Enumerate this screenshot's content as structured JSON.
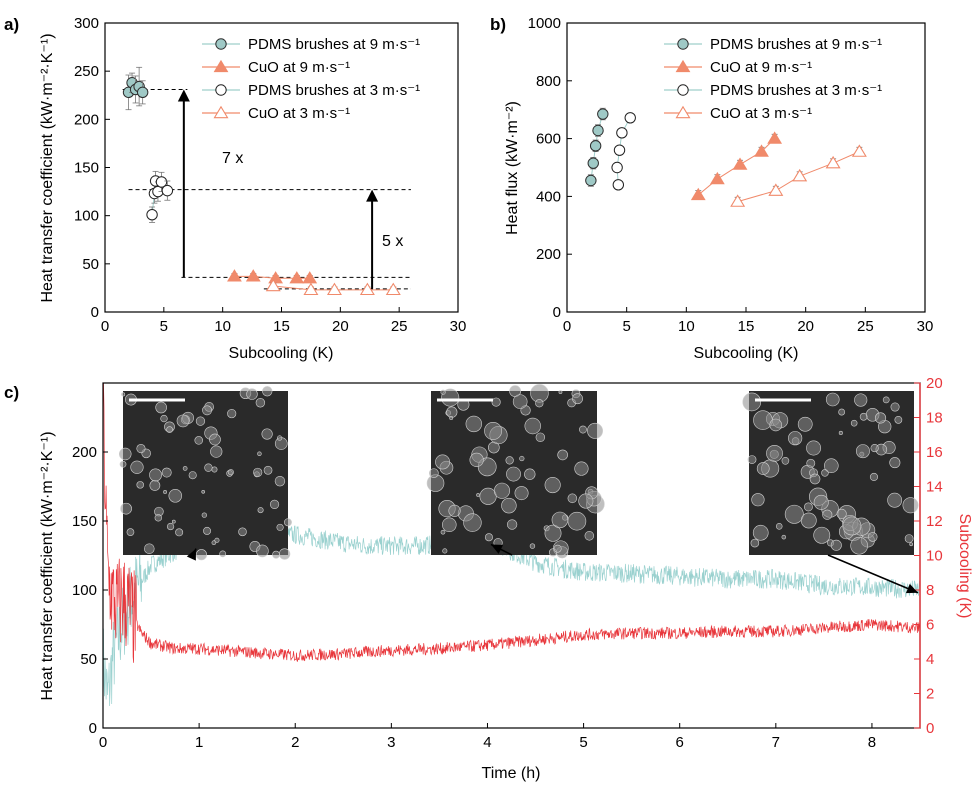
{
  "colors": {
    "teal_fill": "#9fc9c6",
    "teal_line": "#9fcfcb",
    "teal_edge": "#2f2f2f",
    "salmon": "#f08a6b",
    "salmon_line": "#f08a6b",
    "red": "#e8363b",
    "cyan_trace": "#9ad1cf"
  },
  "panels": {
    "a": "a)",
    "b": "b)",
    "c": "c)"
  },
  "chart_data": [
    {
      "type": "scatter",
      "panel": "a",
      "xlabel": "Subcooling (K)",
      "ylabel": "Heat transfer coefficient (kW·m⁻²·K⁻¹)",
      "xlim": [
        0,
        30
      ],
      "ylim": [
        0,
        300
      ],
      "xticks": [
        0,
        5,
        10,
        15,
        20,
        25,
        30
      ],
      "yticks": [
        0,
        50,
        100,
        150,
        200,
        250,
        300
      ],
      "legend_position": "top-right",
      "series": [
        {
          "name": "PDMS brushes at 9 m·s⁻¹",
          "marker": "circle-filled",
          "x": [
            2.0,
            2.3,
            2.6,
            2.9,
            3.2
          ],
          "y": [
            228,
            238,
            231,
            234,
            228
          ],
          "err": [
            18,
            10,
            14,
            20,
            12
          ]
        },
        {
          "name": "CuO at 9 m·s⁻¹",
          "marker": "triangle-filled",
          "x": [
            11.0,
            12.6,
            14.5,
            16.3,
            17.4
          ],
          "y": [
            37,
            37,
            35,
            35,
            35
          ],
          "err": [
            3,
            3,
            3,
            3,
            3
          ]
        },
        {
          "name": "PDMS brushes at 3 m·s⁻¹",
          "marker": "circle-open",
          "x": [
            4.0,
            4.2,
            4.3,
            4.5,
            4.8,
            5.3
          ],
          "y": [
            101,
            123,
            136,
            125,
            135,
            126
          ],
          "err": [
            8,
            10,
            10,
            10,
            10,
            10
          ]
        },
        {
          "name": "CuO at 3 m·s⁻¹",
          "marker": "triangle-open",
          "x": [
            14.3,
            17.5,
            19.5,
            22.3,
            24.5
          ],
          "y": [
            27,
            23,
            23,
            23,
            23
          ],
          "err": [
            3,
            3,
            3,
            3,
            3
          ]
        }
      ],
      "annotations": [
        {
          "text": "7 x"
        },
        {
          "text": "5 x"
        }
      ]
    },
    {
      "type": "scatter",
      "panel": "b",
      "xlabel": "Subcooling (K)",
      "ylabel": "Heat flux (kW·m⁻²)",
      "xlim": [
        0,
        30
      ],
      "ylim": [
        0,
        1000
      ],
      "xticks": [
        0,
        5,
        10,
        15,
        20,
        25,
        30
      ],
      "yticks": [
        0,
        200,
        400,
        600,
        800,
        1000
      ],
      "legend_position": "top-right",
      "series": [
        {
          "name": "PDMS brushes at 9 m·s⁻¹",
          "marker": "circle-filled",
          "x": [
            2.0,
            2.2,
            2.4,
            2.6,
            3.0
          ],
          "y": [
            455,
            515,
            575,
            628,
            685
          ],
          "err": [
            20,
            20,
            20,
            20,
            20
          ]
        },
        {
          "name": "CuO at 9 m·s⁻¹",
          "marker": "triangle-filled",
          "x": [
            11.0,
            12.6,
            14.5,
            16.3,
            17.4
          ],
          "y": [
            405,
            460,
            510,
            555,
            600
          ],
          "err": [
            15,
            15,
            15,
            15,
            15
          ]
        },
        {
          "name": "PDMS brushes at 3 m·s⁻¹",
          "marker": "circle-open",
          "x": [
            4.3,
            4.2,
            4.4,
            4.6,
            5.3
          ],
          "y": [
            440,
            500,
            560,
            620,
            672
          ],
          "err": [
            15,
            15,
            15,
            15,
            15
          ]
        },
        {
          "name": "CuO at 3 m·s⁻¹",
          "marker": "triangle-open",
          "x": [
            14.3,
            17.5,
            19.5,
            22.3,
            24.5
          ],
          "y": [
            382,
            420,
            470,
            515,
            555
          ],
          "err": [
            15,
            15,
            15,
            15,
            15
          ]
        }
      ]
    },
    {
      "type": "line",
      "panel": "c",
      "xlabel": "Time (h)",
      "ylabel": "Heat transfer coefficient (kW·m⁻²·K⁻¹)",
      "y2label": "Subcooling (K)",
      "xlim": [
        0,
        8.5
      ],
      "ylim": [
        0,
        250
      ],
      "y2lim": [
        0,
        20
      ],
      "xticks": [
        0,
        1,
        2,
        3,
        4,
        5,
        6,
        7,
        8
      ],
      "yticks": [
        0,
        50,
        100,
        150,
        200
      ],
      "y2ticks": [
        0,
        2,
        4,
        6,
        8,
        10,
        12,
        14,
        16,
        18,
        20
      ],
      "series": [
        {
          "name": "Heat transfer coefficient",
          "axis": "left",
          "x": [
            0,
            0.05,
            0.1,
            0.2,
            0.3,
            0.5,
            0.75,
            1.0,
            1.25,
            1.5,
            1.75,
            2.0,
            2.25,
            2.5,
            2.75,
            3.0,
            3.25,
            3.5,
            3.75,
            4.0,
            4.25,
            4.5,
            4.75,
            5.0,
            5.5,
            6.0,
            6.5,
            7.0,
            7.5,
            8.0,
            8.5
          ],
          "y": [
            50,
            20,
            50,
            75,
            95,
            118,
            128,
            133,
            135,
            138,
            140,
            140,
            137,
            134,
            132,
            132,
            132,
            133,
            135,
            137,
            128,
            120,
            116,
            113,
            112,
            110,
            108,
            108,
            103,
            102,
            100
          ]
        },
        {
          "name": "Subcooling",
          "axis": "right",
          "x": [
            0,
            0.02,
            0.05,
            0.1,
            0.15,
            0.2,
            0.25,
            0.3,
            0.4,
            0.5,
            0.75,
            1.0,
            1.5,
            2.0,
            2.5,
            3.0,
            3.5,
            4.0,
            4.5,
            5.0,
            5.5,
            6.0,
            6.5,
            7.0,
            7.5,
            8.0,
            8.5
          ],
          "y": [
            20,
            14,
            9,
            7.5,
            7,
            7.5,
            7.2,
            6.5,
            5.5,
            4.9,
            4.6,
            4.6,
            4.4,
            4.2,
            4.3,
            4.5,
            4.6,
            4.8,
            5.1,
            5.4,
            5.5,
            5.5,
            5.6,
            5.6,
            5.8,
            6.0,
            5.8
          ]
        }
      ]
    }
  ]
}
